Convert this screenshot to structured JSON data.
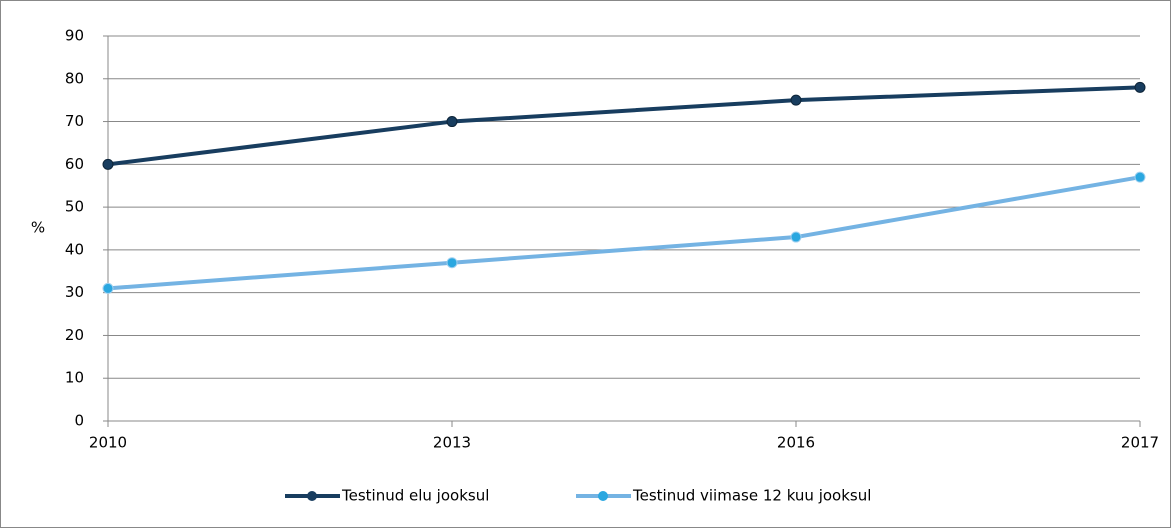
{
  "chart_data": {
    "type": "line",
    "categories": [
      "2010",
      "2013",
      "2016",
      "2017"
    ],
    "ylabel": "%",
    "ylim": [
      0,
      90
    ],
    "yticks": [
      0,
      10,
      20,
      30,
      40,
      50,
      60,
      70,
      80,
      90
    ],
    "grid": true,
    "legend": "bottom",
    "series": [
      {
        "name": "Testinud elu jooksul",
        "color": "#183d5f",
        "values": [
          60,
          70,
          75,
          78
        ]
      },
      {
        "name": "Testinud viimase 12 kuu jooksul",
        "color": "#74b3e3",
        "values": [
          31,
          37,
          43,
          57
        ]
      }
    ]
  }
}
